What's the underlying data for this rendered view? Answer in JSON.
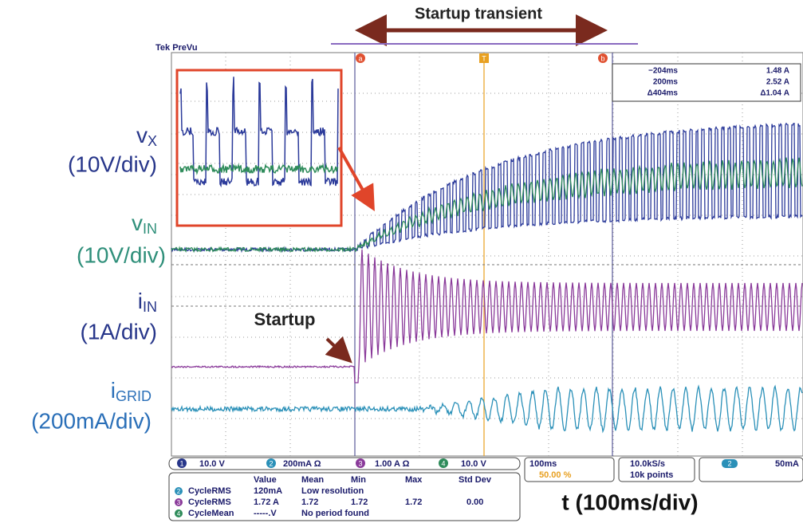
{
  "header": {
    "title": "Startup transient",
    "scope_brand": "Tek PreVu"
  },
  "channels": [
    {
      "symbol": "v",
      "subscript": "X",
      "scale": "(10V/div)"
    },
    {
      "symbol": "v",
      "subscript": "IN",
      "scale": "(10V/div)"
    },
    {
      "symbol": "i",
      "subscript": "IN",
      "scale": "(1A/div)"
    },
    {
      "symbol": "i",
      "subscript": "GRID",
      "scale": "(200mA/div)"
    }
  ],
  "annotations": {
    "startup": "Startup",
    "time_axis": "t (100ms/div)"
  },
  "cursor_markers": [
    "a",
    "T",
    "b"
  ],
  "cursor_readout": {
    "rows": [
      [
        "−204ms",
        "1.48 A"
      ],
      [
        "200ms",
        "2.52 A"
      ],
      [
        "Δ404ms",
        "Δ1.04 A"
      ]
    ]
  },
  "status_bar": {
    "channels": [
      {
        "number": "1",
        "setting": "10.0 V"
      },
      {
        "number": "2",
        "setting": "200mA Ω"
      },
      {
        "number": "3",
        "setting": "1.00 A Ω"
      },
      {
        "number": "4",
        "setting": "10.0 V"
      }
    ],
    "timebase": "100ms",
    "trigger_position": "50.00 %",
    "sample_rate": "10.0kS/s",
    "record_length": "10k points",
    "trigger_channel": "2",
    "trigger_level": "50mA"
  },
  "measurements": {
    "headers": [
      "Value",
      "Mean",
      "Min",
      "Max",
      "Std Dev"
    ],
    "rows": [
      {
        "channel": "2",
        "name": "CycleRMS",
        "cells": [
          "120mA",
          "Low resolution"
        ]
      },
      {
        "channel": "3",
        "name": "CycleRMS",
        "cells": [
          "1.72 A",
          "1.72",
          "1.72",
          "1.72",
          "0.00"
        ]
      },
      {
        "channel": "4",
        "name": "CycleMean",
        "cells": [
          "-----.V",
          "No period found"
        ]
      }
    ]
  }
}
